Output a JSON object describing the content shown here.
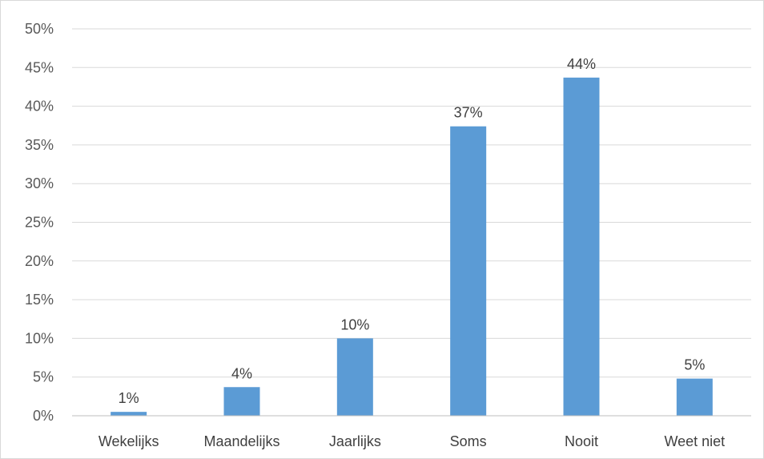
{
  "chart_data": {
    "type": "bar",
    "title": "",
    "xlabel": "",
    "ylabel": "",
    "categories": [
      "Wekelijks",
      "Maandelijks",
      "Jaarlijks",
      "Soms",
      "Nooit",
      "Weet niet"
    ],
    "values": [
      0.5,
      3.7,
      10.0,
      37.4,
      43.7,
      4.8
    ],
    "data_labels": [
      "1%",
      "4%",
      "10%",
      "37%",
      "44%",
      "5%"
    ],
    "ylim": [
      0,
      50
    ],
    "y_ticks": [
      0,
      5,
      10,
      15,
      20,
      25,
      30,
      35,
      40,
      45,
      50
    ],
    "y_tick_labels": [
      "0%",
      "5%",
      "10%",
      "15%",
      "20%",
      "25%",
      "30%",
      "35%",
      "40%",
      "45%",
      "50%"
    ],
    "grid": true,
    "legend": "none",
    "colors": {
      "bar": "#5b9bd5",
      "grid": "#d9d9d9",
      "axis": "#bfbfbf"
    }
  }
}
